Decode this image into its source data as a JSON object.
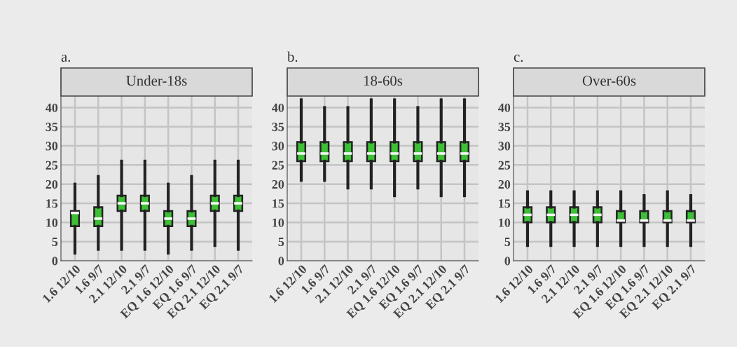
{
  "chart_data": [
    {
      "type": "box",
      "title": "Under-18s",
      "annotations": [
        "a."
      ],
      "color": "#3dbf36",
      "categories": [
        "1.6 12/10",
        "1.6 9/7",
        "2.1 12/10",
        "2.1 9/7",
        "EQ 1.6 12/10",
        "EQ 1.6 9/7",
        "EQ 2.1 12/10",
        "EQ 2.1 9/7"
      ],
      "boxes": [
        {
          "low": 2,
          "q1": 9,
          "median": 12.5,
          "q3": 13,
          "high": 20
        },
        {
          "low": 3,
          "q1": 9,
          "median": 11,
          "q3": 14,
          "high": 22
        },
        {
          "low": 3,
          "q1": 13,
          "median": 15,
          "q3": 17,
          "high": 26
        },
        {
          "low": 3,
          "q1": 13,
          "median": 15,
          "q3": 17,
          "high": 26
        },
        {
          "low": 2,
          "q1": 9,
          "median": 11,
          "q3": 13,
          "high": 20
        },
        {
          "low": 3,
          "q1": 9,
          "median": 11,
          "q3": 13,
          "high": 22
        },
        {
          "low": 4,
          "q1": 13,
          "median": 15,
          "q3": 17,
          "high": 26
        },
        {
          "low": 3,
          "q1": 13,
          "median": 15,
          "q3": 17,
          "high": 26
        }
      ],
      "ylim": [
        0,
        43
      ],
      "yticks": [
        0,
        5,
        10,
        15,
        20,
        25,
        30,
        35,
        40
      ],
      "grid": true
    },
    {
      "type": "box",
      "title": "18-60s",
      "annotations": [
        "b."
      ],
      "color": "#3dbf36",
      "categories": [
        "1.6 12/10",
        "1.6 9/7",
        "2.1 12/10",
        "2.1 9/7",
        "EQ 1.6 12/10",
        "EQ 1.6 9/7",
        "EQ 2.1 12/10",
        "EQ 2.1 9/7"
      ],
      "boxes": [
        {
          "low": 21,
          "q1": 26,
          "median": 28,
          "q3": 31,
          "high": 42
        },
        {
          "low": 21,
          "q1": 26,
          "median": 28,
          "q3": 31,
          "high": 40
        },
        {
          "low": 19,
          "q1": 26,
          "median": 28,
          "q3": 31,
          "high": 40
        },
        {
          "low": 19,
          "q1": 26,
          "median": 28,
          "q3": 31,
          "high": 42
        },
        {
          "low": 17,
          "q1": 26,
          "median": 28,
          "q3": 31,
          "high": 42
        },
        {
          "low": 19,
          "q1": 26,
          "median": 28,
          "q3": 31,
          "high": 40
        },
        {
          "low": 17,
          "q1": 26,
          "median": 28,
          "q3": 31,
          "high": 42
        },
        {
          "low": 17,
          "q1": 26,
          "median": 28,
          "q3": 31,
          "high": 42
        }
      ],
      "ylim": [
        0,
        43
      ],
      "yticks": [
        0,
        5,
        10,
        15,
        20,
        25,
        30,
        35,
        40
      ],
      "grid": true
    },
    {
      "type": "box",
      "title": "Over-60s",
      "annotations": [
        "c."
      ],
      "color": "#3dbf36",
      "categories": [
        "1.6 12/10",
        "1.6 9/7",
        "2.1 12/10",
        "2.1 9/7",
        "EQ 1.6 12/10",
        "EQ 1.6 9/7",
        "EQ 2.1 12/10",
        "EQ 2.1 9/7"
      ],
      "boxes": [
        {
          "low": 4,
          "q1": 10,
          "median": 12,
          "q3": 14,
          "high": 18
        },
        {
          "low": 4,
          "q1": 10,
          "median": 12,
          "q3": 14,
          "high": 18
        },
        {
          "low": 4,
          "q1": 10,
          "median": 12,
          "q3": 14,
          "high": 18
        },
        {
          "low": 4,
          "q1": 10,
          "median": 12,
          "q3": 14,
          "high": 18
        },
        {
          "low": 4,
          "q1": 10,
          "median": 10.5,
          "q3": 13,
          "high": 18
        },
        {
          "low": 4,
          "q1": 10,
          "median": 10.5,
          "q3": 13,
          "high": 17
        },
        {
          "low": 4,
          "q1": 10,
          "median": 10.5,
          "q3": 13,
          "high": 18
        },
        {
          "low": 4,
          "q1": 10,
          "median": 10.5,
          "q3": 13,
          "high": 17
        }
      ],
      "ylim": [
        0,
        43
      ],
      "yticks": [
        0,
        5,
        10,
        15,
        20,
        25,
        30,
        35,
        40
      ],
      "grid": true
    }
  ]
}
